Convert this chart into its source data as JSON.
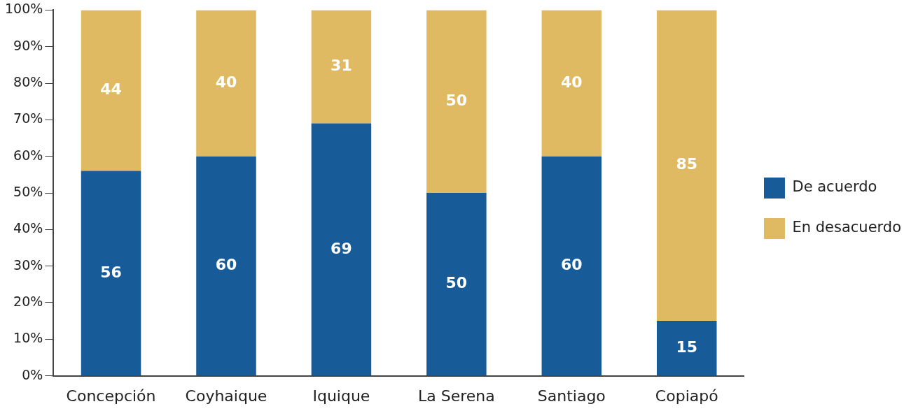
{
  "chart_data": {
    "type": "bar",
    "stacked": true,
    "categories": [
      "Concepción",
      "Coyhaique",
      "Iquique",
      "La Serena",
      "Santiago",
      "Copiapó"
    ],
    "series": [
      {
        "name": "De acuerdo",
        "color": "#175b99",
        "values": [
          56,
          60,
          69,
          50,
          60,
          15
        ]
      },
      {
        "name": "En desacuerdo",
        "color": "#dfba63",
        "values": [
          44,
          40,
          31,
          50,
          40,
          85
        ]
      }
    ],
    "ylim": [
      0,
      100
    ],
    "yticks": [
      {
        "value": 0,
        "label": "0%"
      },
      {
        "value": 10,
        "label": "10%"
      },
      {
        "value": 20,
        "label": "20%"
      },
      {
        "value": 30,
        "label": "30%"
      },
      {
        "value": 40,
        "label": "40%"
      },
      {
        "value": 50,
        "label": "50%"
      },
      {
        "value": 60,
        "label": "60%"
      },
      {
        "value": 70,
        "label": "70%"
      },
      {
        "value": 80,
        "label": "80%"
      },
      {
        "value": 90,
        "label": "90%"
      },
      {
        "value": 100,
        "label": "100%"
      }
    ],
    "grid": false,
    "legend": "right",
    "data_labels": true
  }
}
